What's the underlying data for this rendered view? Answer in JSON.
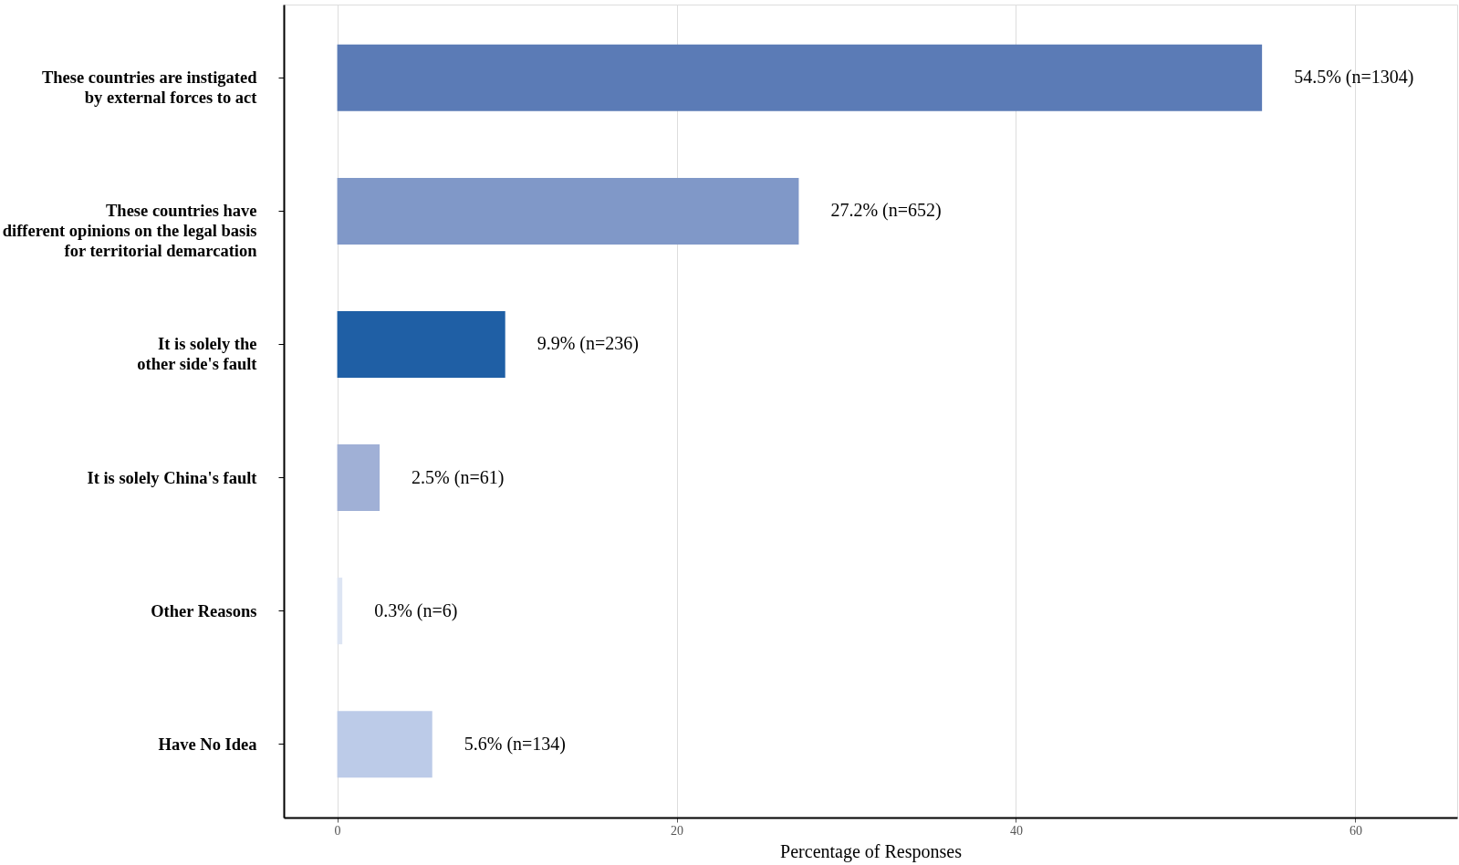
{
  "chart_data": {
    "type": "bar",
    "orientation": "horizontal",
    "xlabel": "Percentage of Responses",
    "categories": [
      "These countries are instigated\nby external forces to act",
      "These countries have\ndifferent opinions on the legal basis\nfor territorial demarcation",
      "It is solely the\nother side's fault",
      "It is solely China's fault",
      "Other Reasons",
      "Have No Idea"
    ],
    "values": [
      54.5,
      27.2,
      9.9,
      2.5,
      0.3,
      5.6
    ],
    "colors": [
      "#5b7bb6",
      "#8098c8",
      "#1f5fa5",
      "#a0b0d6",
      "#dde5f3",
      "#bccbe8"
    ],
    "value_labels": [
      "54.5% (n=1304)",
      "27.2% (n=652)",
      "9.9% (n=236)",
      "2.5% (n=61)",
      "0.3% (n=6)",
      "5.6% (n=134)"
    ],
    "xlim": [
      -3.15,
      66
    ],
    "xticks": [
      0,
      20,
      40,
      60
    ],
    "grid": "x"
  }
}
